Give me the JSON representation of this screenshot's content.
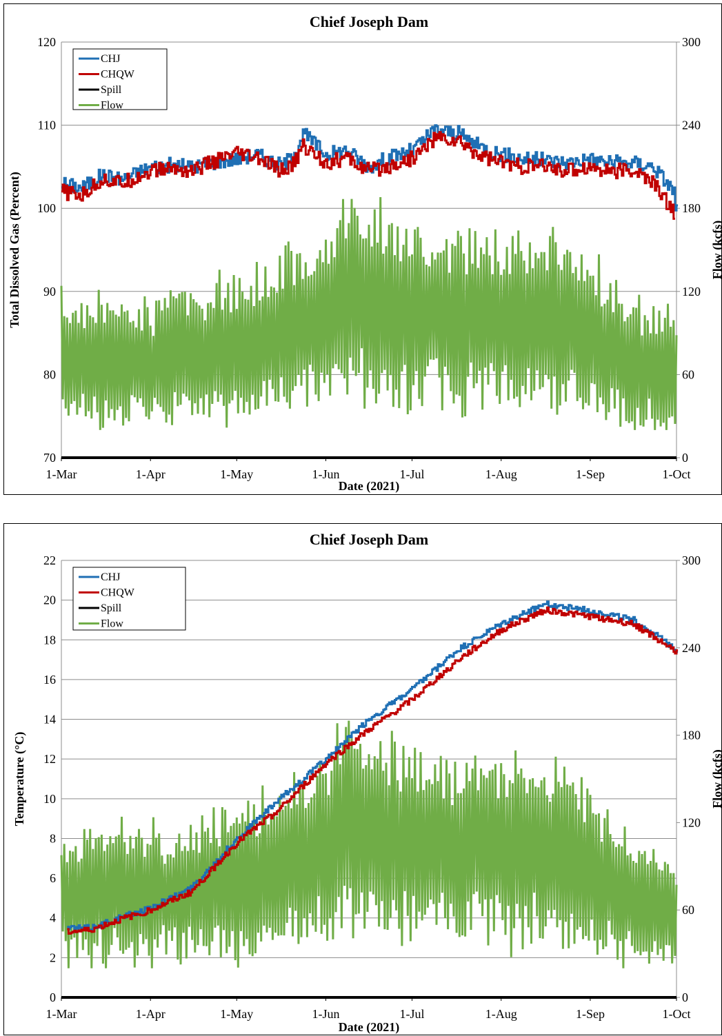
{
  "chart_data": [
    {
      "type": "line",
      "title": "Chief Joseph Dam",
      "xlabel": "Date (2021)",
      "ylabel": "Total Dissolved Gas (Percent)",
      "y2label": "Flow (kcfs)",
      "x_ticks": [
        "1-Mar",
        "1-Apr",
        "1-May",
        "1-Jun",
        "1-Jul",
        "1-Aug",
        "1-Sep",
        "1-Oct"
      ],
      "ylim": [
        70,
        120
      ],
      "y_ticks": [
        70,
        80,
        90,
        100,
        110,
        120
      ],
      "y2lim": [
        0,
        300
      ],
      "y2_ticks": [
        0,
        60,
        120,
        180,
        240,
        300
      ],
      "grid": true,
      "legend": "top-left",
      "series": [
        {
          "name": "CHJ",
          "axis": "left",
          "color": "#1f6fb4",
          "day": [
            0,
            7,
            14,
            21,
            31,
            38,
            45,
            52,
            61,
            68,
            76,
            80,
            84,
            92,
            99,
            107,
            113,
            122,
            130,
            138,
            145,
            153,
            160,
            168,
            176,
            183,
            191,
            199,
            206,
            213,
            207,
            214
          ],
          "values": [
            103.0,
            102.5,
            104.0,
            103.5,
            105.0,
            105.2,
            105.0,
            105.5,
            106.0,
            106.5,
            105.2,
            106.0,
            109.0,
            106.5,
            107.0,
            105.0,
            106.0,
            107.0,
            109.5,
            109.0,
            107.5,
            106.5,
            106.0,
            105.8,
            105.5,
            106.0,
            105.5,
            105.5,
            105.0,
            102.0,
            103.0,
            100.0
          ]
        },
        {
          "name": "CHQW",
          "axis": "left",
          "color": "#c00000",
          "day": [
            0,
            7,
            14,
            21,
            31,
            38,
            45,
            52,
            61,
            68,
            76,
            80,
            84,
            92,
            99,
            107,
            113,
            122,
            130,
            138,
            145,
            153,
            160,
            168,
            176,
            183,
            191,
            199,
            206,
            213
          ],
          "values": [
            102.0,
            101.5,
            103.5,
            103.0,
            104.5,
            104.8,
            104.5,
            105.5,
            106.5,
            106.0,
            104.5,
            105.0,
            107.5,
            105.5,
            106.0,
            104.5,
            105.0,
            106.0,
            108.5,
            108.0,
            106.5,
            105.5,
            105.0,
            105.0,
            104.5,
            105.0,
            104.5,
            104.5,
            103.0,
            99.5
          ]
        },
        {
          "name": "Spill",
          "axis": "right",
          "color": "#000000",
          "day": [
            0,
            214
          ],
          "values": [
            0,
            0
          ]
        },
        {
          "name": "Flow",
          "axis": "right",
          "color": "#70ad47",
          "day": [
            0,
            31,
            61,
            92,
            100,
            110,
            122,
            153,
            176,
            183,
            199,
            214
          ],
          "values": [
            70,
            68,
            80,
            100,
            120,
            110,
            105,
            100,
            100,
            90,
            65,
            60
          ],
          "daily_range": [
            30,
            180
          ]
        }
      ]
    },
    {
      "type": "line",
      "title": "Chief Joseph Dam",
      "xlabel": "Date (2021)",
      "ylabel": "Temperature (°C)",
      "y2label": "Flow (kcfs)",
      "x_ticks": [
        "1-Mar",
        "1-Apr",
        "1-May",
        "1-Jun",
        "1-Jul",
        "1-Aug",
        "1-Sep",
        "1-Oct"
      ],
      "ylim": [
        0,
        22
      ],
      "y_ticks": [
        0,
        2,
        4,
        6,
        8,
        10,
        12,
        14,
        16,
        18,
        20,
        22
      ],
      "y2lim": [
        0,
        300
      ],
      "y2_ticks": [
        0,
        60,
        120,
        180,
        240,
        300
      ],
      "grid": true,
      "legend": "top-left",
      "series": [
        {
          "name": "CHJ",
          "axis": "left",
          "color": "#1f6fb4",
          "day": [
            2,
            10,
            20,
            31,
            45,
            61,
            76,
            92,
            107,
            122,
            138,
            153,
            168,
            183,
            199,
            214
          ],
          "values": [
            3.5,
            3.5,
            4.0,
            4.5,
            5.5,
            8.0,
            10.0,
            12.0,
            14.0,
            15.5,
            17.5,
            18.8,
            19.8,
            19.5,
            19.0,
            17.5
          ]
        },
        {
          "name": "CHQW",
          "axis": "left",
          "color": "#c00000",
          "day": [
            2,
            10,
            20,
            31,
            45,
            61,
            76,
            92,
            107,
            122,
            138,
            153,
            168,
            183,
            199,
            214
          ],
          "values": [
            3.3,
            3.4,
            3.9,
            4.4,
            5.3,
            7.8,
            9.5,
            11.8,
            13.5,
            15.0,
            17.0,
            18.5,
            19.5,
            19.2,
            18.8,
            17.4
          ]
        },
        {
          "name": "Spill",
          "axis": "right",
          "color": "#000000",
          "day": [
            0,
            214
          ],
          "values": [
            0,
            0
          ]
        },
        {
          "name": "Flow",
          "axis": "right",
          "color": "#70ad47",
          "day": [
            0,
            31,
            61,
            92,
            100,
            110,
            122,
            153,
            176,
            183,
            199,
            214
          ],
          "values": [
            70,
            68,
            80,
            100,
            120,
            110,
            105,
            100,
            100,
            90,
            65,
            60
          ],
          "daily_range": [
            30,
            180
          ]
        }
      ]
    }
  ]
}
